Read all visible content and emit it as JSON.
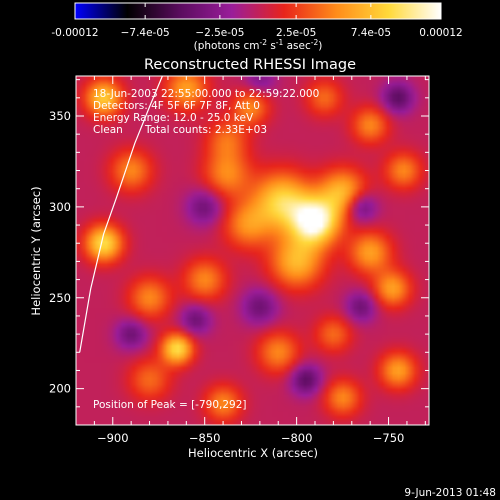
{
  "colorbar": {
    "tick_labels": [
      "-0.00012",
      "−7.4e-05",
      "−2.5e-05",
      "2.5e-05",
      "7.4e-05",
      "0.00012"
    ],
    "tick_values": [
      -0.00012,
      -7.4e-05,
      -2.5e-05,
      2.5e-05,
      7.4e-05,
      0.00012
    ],
    "range": [
      -0.00012,
      0.00012
    ],
    "unit_parts": [
      "(photons cm",
      "-2",
      " s",
      "-1",
      " asec",
      "-2",
      ")"
    ]
  },
  "chart_data": {
    "type": "heatmap",
    "title": "Reconstructed RHESSI Image",
    "xlabel": "Heliocentric X (arcsec)",
    "ylabel": "Heliocentric Y (arcsec)",
    "xlim": [
      -920,
      -728
    ],
    "ylim": [
      180,
      372
    ],
    "x_ticks": [
      -900,
      -850,
      -800,
      -750
    ],
    "y_ticks": [
      200,
      250,
      300,
      350
    ],
    "x_tick_labels": [
      "−900",
      "−850",
      "−800",
      "−750"
    ],
    "y_tick_labels": [
      "200",
      "250",
      "300",
      "350"
    ],
    "colormap": [
      "#0000ff",
      "#000000",
      "#5a0c5e",
      "#9a1d9a",
      "#e8241b",
      "#ff8c1a",
      "#ffd93a",
      "#ffffff"
    ],
    "peak": [
      -790,
      292
    ],
    "sources": [
      {
        "x": -790,
        "y": 292,
        "amp": 0.00012,
        "sigma": 9
      },
      {
        "x": -808,
        "y": 303,
        "amp": 8.5e-05,
        "sigma": 11
      },
      {
        "x": -775,
        "y": 308,
        "amp": 7e-05,
        "sigma": 9
      },
      {
        "x": -800,
        "y": 270,
        "amp": 7e-05,
        "sigma": 10
      },
      {
        "x": -838,
        "y": 318,
        "amp": 5e-05,
        "sigma": 9
      },
      {
        "x": -838,
        "y": 337,
        "amp": 4e-05,
        "sigma": 8
      },
      {
        "x": -827,
        "y": 290,
        "amp": 5e-05,
        "sigma": 9
      },
      {
        "x": -905,
        "y": 280,
        "amp": 9e-05,
        "sigma": 7
      },
      {
        "x": -905,
        "y": 360,
        "amp": 8e-05,
        "sigma": 7
      },
      {
        "x": -865,
        "y": 222,
        "amp": 9e-05,
        "sigma": 6
      },
      {
        "x": -880,
        "y": 250,
        "amp": 5e-05,
        "sigma": 8
      },
      {
        "x": -890,
        "y": 320,
        "amp": 5e-05,
        "sigma": 8
      },
      {
        "x": -850,
        "y": 260,
        "amp": 5e-05,
        "sigma": 8
      },
      {
        "x": -860,
        "y": 365,
        "amp": 6e-05,
        "sigma": 8
      },
      {
        "x": -825,
        "y": 355,
        "amp": 5e-05,
        "sigma": 7
      },
      {
        "x": -760,
        "y": 275,
        "amp": 6e-05,
        "sigma": 8
      },
      {
        "x": -748,
        "y": 255,
        "amp": 6e-05,
        "sigma": 7
      },
      {
        "x": -742,
        "y": 320,
        "amp": 5e-05,
        "sigma": 7
      },
      {
        "x": -760,
        "y": 345,
        "amp": 5e-05,
        "sigma": 7
      },
      {
        "x": -785,
        "y": 360,
        "amp": 4e-05,
        "sigma": 7
      },
      {
        "x": -745,
        "y": 210,
        "amp": 6e-05,
        "sigma": 7
      },
      {
        "x": -775,
        "y": 195,
        "amp": 5e-05,
        "sigma": 7
      },
      {
        "x": -810,
        "y": 220,
        "amp": 5e-05,
        "sigma": 8
      },
      {
        "x": -840,
        "y": 192,
        "amp": 5e-05,
        "sigma": 7
      },
      {
        "x": -880,
        "y": 205,
        "amp": 4e-05,
        "sigma": 8
      },
      {
        "x": -780,
        "y": 230,
        "amp": 4e-05,
        "sigma": 7
      },
      {
        "x": -820,
        "y": 245,
        "amp": -4e-05,
        "sigma": 7
      },
      {
        "x": -855,
        "y": 238,
        "amp": -4e-05,
        "sigma": 6
      },
      {
        "x": -795,
        "y": 205,
        "amp": -5e-05,
        "sigma": 6
      },
      {
        "x": -765,
        "y": 245,
        "amp": -4e-05,
        "sigma": 6
      },
      {
        "x": -765,
        "y": 300,
        "amp": -5e-05,
        "sigma": 6
      },
      {
        "x": -745,
        "y": 360,
        "amp": -5e-05,
        "sigma": 6
      },
      {
        "x": -890,
        "y": 230,
        "amp": -4e-05,
        "sigma": 6
      },
      {
        "x": -850,
        "y": 300,
        "amp": -4e-05,
        "sigma": 7
      },
      {
        "x": -820,
        "y": 370,
        "amp": -3e-05,
        "sigma": 6
      }
    ],
    "limb_curve": [
      [
        -918,
        220
      ],
      [
        -912,
        255
      ],
      [
        -905,
        285
      ],
      [
        -898,
        305
      ],
      [
        -888,
        335
      ],
      [
        -880,
        355
      ],
      [
        -873,
        372
      ]
    ],
    "annotations": {
      "time_range": "18-Jun-2003 22:55:00.000 to 22:59:22.000",
      "detectors": "Detectors: 4F 5F 6F 7F 8F, Att 0",
      "energy": "Energy Range: 12.0 - 25.0 keV",
      "clean_label": "Clean",
      "total_counts": "Total counts: 2.33E+03",
      "peak_text": "Position of Peak = [-790,292]"
    }
  },
  "footer": {
    "timestamp": "9-Jun-2013 01:48"
  }
}
